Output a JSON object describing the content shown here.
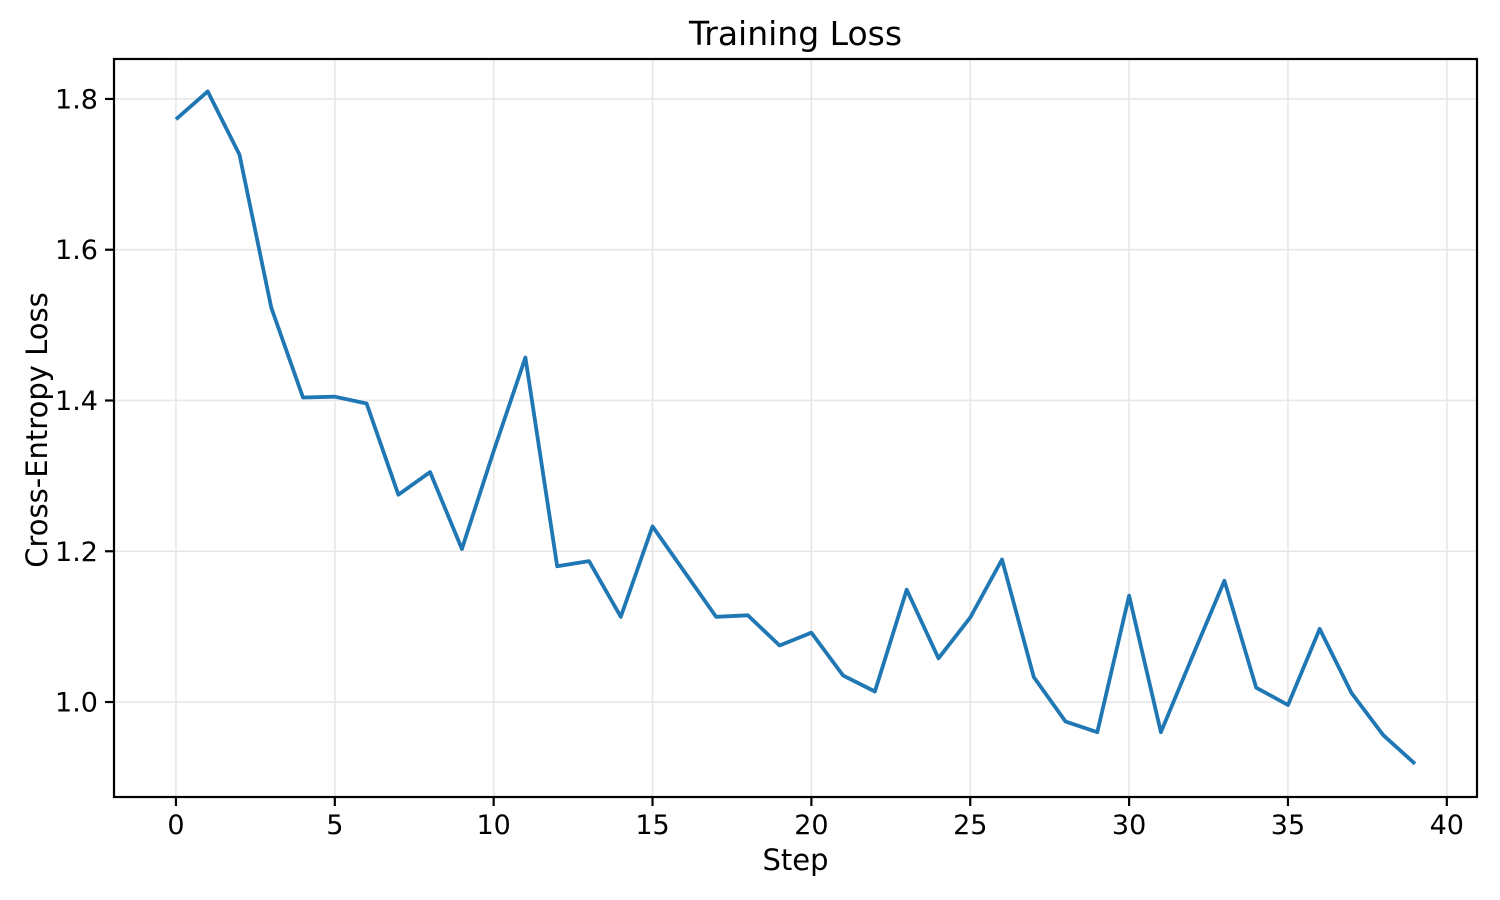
{
  "chart_data": {
    "type": "line",
    "title": "Training Loss",
    "xlabel": "Step",
    "ylabel": "Cross-Entropy Loss",
    "x": [
      0,
      1,
      2,
      3,
      4,
      5,
      6,
      7,
      8,
      9,
      10,
      11,
      12,
      13,
      14,
      15,
      16,
      17,
      18,
      19,
      20,
      21,
      22,
      23,
      24,
      25,
      26,
      27,
      28,
      29,
      30,
      31,
      32,
      33,
      34,
      35,
      36,
      37,
      38,
      39
    ],
    "series": [
      {
        "name": "training-loss",
        "values": [
          1.773,
          1.81,
          1.726,
          1.523,
          1.404,
          1.405,
          1.396,
          1.275,
          1.305,
          1.203,
          1.333,
          1.457,
          1.18,
          1.187,
          1.113,
          1.233,
          1.173,
          1.113,
          1.115,
          1.075,
          1.092,
          1.035,
          1.014,
          1.149,
          1.058,
          1.112,
          1.189,
          1.033,
          0.974,
          0.96,
          1.141,
          0.96,
          1.061,
          1.161,
          1.019,
          0.996,
          1.097,
          1.012,
          0.956,
          0.918
        ]
      }
    ],
    "xticks": [
      0,
      5,
      10,
      15,
      20,
      25,
      30,
      35,
      40
    ],
    "xtick_labels": [
      "0",
      "5",
      "10",
      "15",
      "20",
      "25",
      "30",
      "35",
      "40"
    ],
    "yticks": [
      1.0,
      1.2,
      1.4,
      1.6,
      1.8
    ],
    "ytick_labels": [
      "1.0",
      "1.2",
      "1.4",
      "1.6",
      "1.8"
    ],
    "xlim": [
      -1.95,
      40.95
    ],
    "ylim": [
      0.874,
      1.853
    ],
    "grid": true,
    "legend": null,
    "line_color": "#1f77b4",
    "grid_color": "#e7e7e7",
    "axis_color": "#000000",
    "background_color": "#ffffff"
  }
}
